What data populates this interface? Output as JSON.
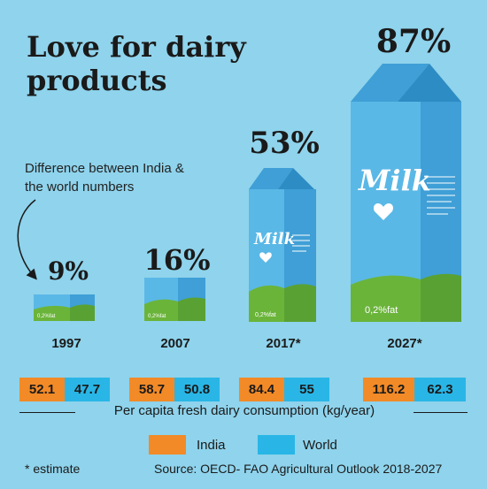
{
  "title": "Love for dairy products",
  "note": "Difference between India & the world numbers",
  "carton_text": {
    "brand": "Milk",
    "fat_label": "0,2%fat",
    "fat_label_2017": "0,2%fat",
    "small_label": "0,2%fat"
  },
  "chart_data": {
    "type": "table",
    "categories": [
      "1997",
      "2007",
      "2017*",
      "2027*"
    ],
    "series": [
      {
        "name": "India",
        "values": [
          52.1,
          58.7,
          84.4,
          116.2
        ],
        "labels": [
          "52.1",
          "58.7",
          "84.4",
          "116.2"
        ],
        "color": "#f28a27"
      },
      {
        "name": "World",
        "values": [
          47.7,
          50.8,
          55,
          62.3
        ],
        "labels": [
          "47.7",
          "50.8",
          "55",
          "62.3"
        ],
        "color": "#29b6e6"
      }
    ],
    "difference_pct": [
      9,
      16,
      53,
      87
    ],
    "difference_labels": [
      "9%",
      "16%",
      "53%",
      "87%"
    ],
    "xlabel": "Per capita fresh dairy consumption (kg/year)"
  },
  "legend": {
    "india": "India",
    "world": "World"
  },
  "footer": {
    "estimate": "* estimate",
    "source": "Source: OECD- FAO Agricultural Outlook 2018-2027"
  },
  "colors": {
    "background": "#8fd3ec",
    "india": "#f28a27",
    "world": "#29b6e6",
    "carton_blue": "#5ab8e6",
    "carton_side": "#3f9fd6",
    "grass": "#6ab43a"
  }
}
